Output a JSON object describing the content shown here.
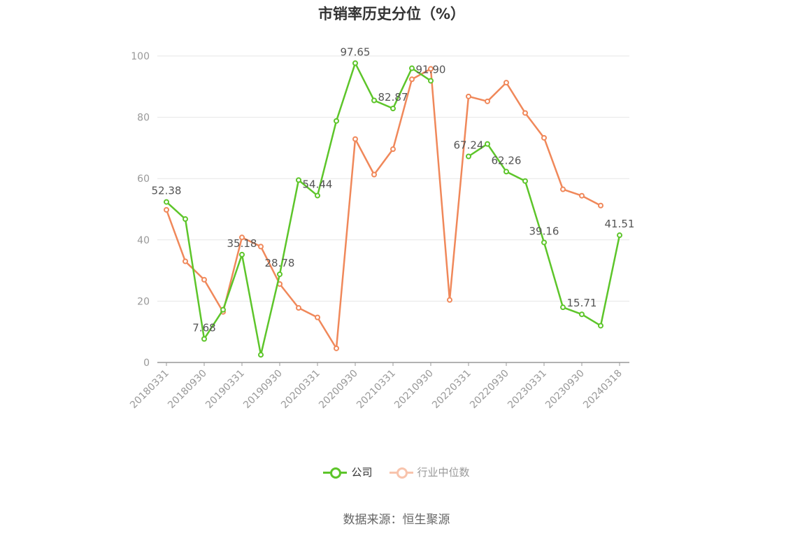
{
  "title": "市销率历史分位（%）",
  "source": "数据来源：恒生聚源",
  "legend": [
    {
      "label": "公司",
      "color": "#5dc52a"
    },
    {
      "label": "行业中位数",
      "color": "#f0885a"
    }
  ],
  "chart_data": {
    "type": "line",
    "title": "市销率历史分位（%）",
    "ylim": [
      0,
      100
    ],
    "yticks": [
      0,
      20,
      40,
      60,
      80,
      100
    ],
    "grid": true,
    "legend_position": "bottom",
    "x": [
      "20180331",
      "20180630",
      "20180930",
      "20181231",
      "20190331",
      "20190630",
      "20190930",
      "20191231",
      "20200331",
      "20200630",
      "20200930",
      "20201231",
      "20210331",
      "20210630",
      "20210930",
      "20211231",
      "20220331",
      "20220630",
      "20220930",
      "20221231",
      "20230331",
      "20230630",
      "20230930",
      "20231231",
      "20240318"
    ],
    "x_tick_labels": [
      "20180331",
      "20180930",
      "20190331",
      "20190930",
      "20200331",
      "20200930",
      "20210331",
      "20210930",
      "20220331",
      "20220930",
      "20230331",
      "20230930",
      "20240318"
    ],
    "series": [
      {
        "name": "公司",
        "color": "#5dc52a",
        "values": [
          52.38,
          46.8,
          7.68,
          17.2,
          35.18,
          2.5,
          28.78,
          59.5,
          54.44,
          78.8,
          97.65,
          85.5,
          82.87,
          96.0,
          91.9,
          null,
          67.24,
          71.3,
          62.26,
          59.2,
          39.16,
          18.0,
          15.71,
          12.0,
          41.51
        ],
        "labels": {
          "0": "52.38",
          "2": "7.68",
          "4": "35.18",
          "6": "28.78",
          "8": "54.44",
          "10": "97.65",
          "12": "82.87",
          "14": "91.90",
          "16": "67.24",
          "18": "62.26",
          "20": "39.16",
          "22": "15.71",
          "24": "41.51"
        }
      },
      {
        "name": "行业中位数",
        "color": "#f0885a",
        "values": [
          49.8,
          33.0,
          27.0,
          16.5,
          40.8,
          37.8,
          25.6,
          17.8,
          14.7,
          4.6,
          72.9,
          61.3,
          69.6,
          92.4,
          95.8,
          20.4,
          86.8,
          85.2,
          91.3,
          81.4,
          73.3,
          56.5,
          54.4,
          51.2,
          null
        ]
      }
    ]
  }
}
